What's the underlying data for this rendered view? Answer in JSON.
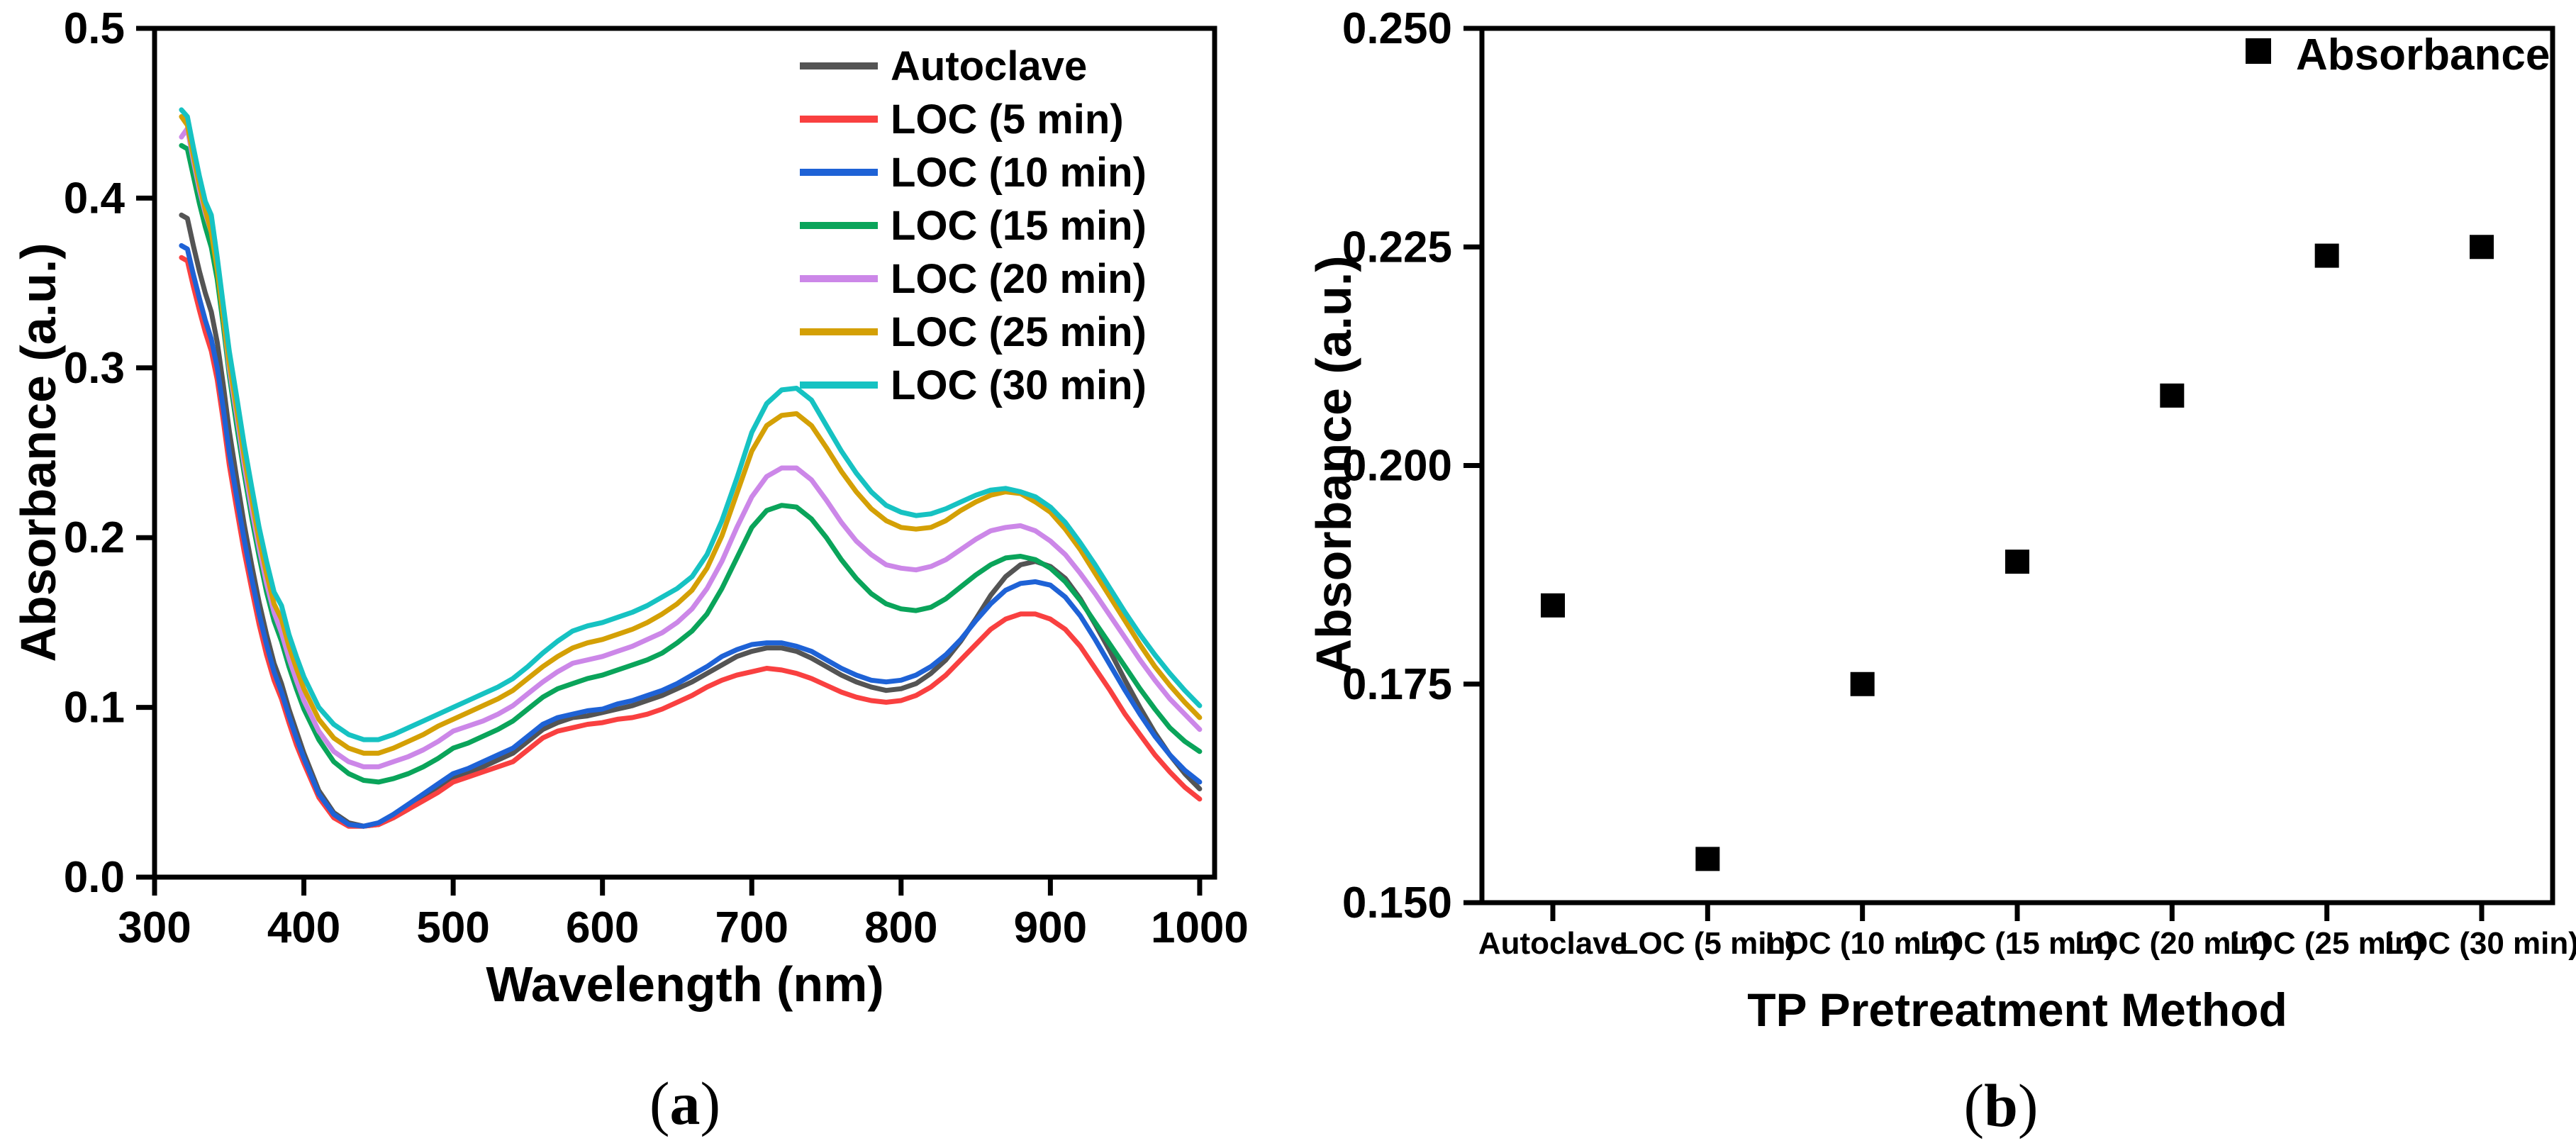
{
  "figure": {
    "background": "#ffffff",
    "axis_color": "#000000",
    "panel_a_caption": "(a)",
    "panel_b_caption": "(b)"
  },
  "chart_data": [
    {
      "panel": "a",
      "type": "line",
      "title": "",
      "xlabel": "Wavelength (nm)",
      "ylabel": "Absorbance (a.u.)",
      "caption": "(a)",
      "xlim": [
        300,
        1010
      ],
      "ylim": [
        0.0,
        0.5
      ],
      "grid": false,
      "legend_position": "top-right-inside",
      "x_ticks": [
        {
          "v": 300,
          "label": "300"
        },
        {
          "v": 400,
          "label": "400"
        },
        {
          "v": 500,
          "label": "500"
        },
        {
          "v": 600,
          "label": "600"
        },
        {
          "v": 700,
          "label": "700"
        },
        {
          "v": 800,
          "label": "800"
        },
        {
          "v": 900,
          "label": "900"
        },
        {
          "v": 1000,
          "label": "1000"
        }
      ],
      "y_ticks": [
        {
          "v": 0.0,
          "label": "0.0"
        },
        {
          "v": 0.1,
          "label": "0.1"
        },
        {
          "v": 0.2,
          "label": "0.2"
        },
        {
          "v": 0.3,
          "label": "0.3"
        },
        {
          "v": 0.4,
          "label": "0.4"
        },
        {
          "v": 0.5,
          "label": "0.5"
        }
      ],
      "x": [
        318,
        322,
        326,
        330,
        334,
        338,
        342,
        346,
        350,
        355,
        360,
        365,
        370,
        375,
        380,
        385,
        390,
        395,
        400,
        410,
        420,
        430,
        440,
        450,
        460,
        470,
        480,
        490,
        500,
        510,
        520,
        530,
        540,
        550,
        560,
        570,
        580,
        590,
        600,
        610,
        620,
        630,
        640,
        650,
        660,
        670,
        680,
        690,
        700,
        710,
        720,
        730,
        740,
        750,
        760,
        770,
        780,
        790,
        800,
        810,
        820,
        830,
        840,
        850,
        860,
        870,
        880,
        890,
        900,
        910,
        920,
        930,
        940,
        950,
        960,
        970,
        980,
        990,
        1000
      ],
      "series": [
        {
          "name": "Autoclave",
          "color": "#545454",
          "y": [
            0.39,
            0.388,
            0.372,
            0.357,
            0.344,
            0.333,
            0.315,
            0.29,
            0.263,
            0.235,
            0.208,
            0.184,
            0.162,
            0.143,
            0.126,
            0.114,
            0.099,
            0.086,
            0.073,
            0.051,
            0.038,
            0.032,
            0.03,
            0.031,
            0.035,
            0.04,
            0.046,
            0.052,
            0.058,
            0.061,
            0.065,
            0.069,
            0.073,
            0.08,
            0.087,
            0.091,
            0.094,
            0.095,
            0.097,
            0.099,
            0.101,
            0.104,
            0.107,
            0.111,
            0.115,
            0.12,
            0.125,
            0.13,
            0.133,
            0.135,
            0.135,
            0.133,
            0.129,
            0.124,
            0.119,
            0.115,
            0.112,
            0.11,
            0.111,
            0.114,
            0.12,
            0.128,
            0.139,
            0.152,
            0.166,
            0.177,
            0.184,
            0.186,
            0.183,
            0.176,
            0.164,
            0.149,
            0.133,
            0.116,
            0.1,
            0.085,
            0.072,
            0.061,
            0.052
          ]
        },
        {
          "name": "LOC (5 min)",
          "color": "#F94040",
          "y": [
            0.365,
            0.363,
            0.348,
            0.334,
            0.321,
            0.31,
            0.293,
            0.269,
            0.243,
            0.217,
            0.192,
            0.17,
            0.149,
            0.131,
            0.116,
            0.105,
            0.091,
            0.078,
            0.067,
            0.047,
            0.035,
            0.03,
            0.03,
            0.031,
            0.035,
            0.04,
            0.045,
            0.05,
            0.056,
            0.059,
            0.062,
            0.065,
            0.068,
            0.075,
            0.082,
            0.086,
            0.088,
            0.09,
            0.091,
            0.093,
            0.094,
            0.096,
            0.099,
            0.103,
            0.107,
            0.112,
            0.116,
            0.119,
            0.121,
            0.123,
            0.122,
            0.12,
            0.117,
            0.113,
            0.109,
            0.106,
            0.104,
            0.103,
            0.104,
            0.107,
            0.112,
            0.119,
            0.128,
            0.137,
            0.146,
            0.152,
            0.155,
            0.155,
            0.152,
            0.146,
            0.136,
            0.123,
            0.11,
            0.096,
            0.084,
            0.072,
            0.062,
            0.053,
            0.046
          ]
        },
        {
          "name": "LOC (10 min)",
          "color": "#1E62D6",
          "y": [
            0.372,
            0.37,
            0.355,
            0.341,
            0.328,
            0.317,
            0.3,
            0.276,
            0.25,
            0.224,
            0.199,
            0.176,
            0.155,
            0.137,
            0.121,
            0.109,
            0.095,
            0.082,
            0.07,
            0.049,
            0.037,
            0.031,
            0.03,
            0.032,
            0.037,
            0.043,
            0.049,
            0.055,
            0.061,
            0.064,
            0.068,
            0.072,
            0.076,
            0.083,
            0.09,
            0.094,
            0.096,
            0.098,
            0.099,
            0.102,
            0.104,
            0.107,
            0.11,
            0.114,
            0.119,
            0.124,
            0.13,
            0.134,
            0.137,
            0.138,
            0.138,
            0.136,
            0.133,
            0.128,
            0.123,
            0.119,
            0.116,
            0.115,
            0.116,
            0.119,
            0.124,
            0.131,
            0.14,
            0.151,
            0.161,
            0.169,
            0.173,
            0.174,
            0.172,
            0.165,
            0.154,
            0.14,
            0.125,
            0.11,
            0.096,
            0.083,
            0.072,
            0.063,
            0.056
          ]
        },
        {
          "name": "LOC (15 min)",
          "color": "#0AA45A",
          "y": [
            0.431,
            0.429,
            0.413,
            0.397,
            0.383,
            0.371,
            0.352,
            0.325,
            0.296,
            0.266,
            0.238,
            0.212,
            0.189,
            0.168,
            0.151,
            0.139,
            0.124,
            0.111,
            0.099,
            0.081,
            0.068,
            0.061,
            0.057,
            0.056,
            0.058,
            0.061,
            0.065,
            0.07,
            0.076,
            0.079,
            0.083,
            0.087,
            0.092,
            0.099,
            0.106,
            0.111,
            0.114,
            0.117,
            0.119,
            0.122,
            0.125,
            0.128,
            0.132,
            0.138,
            0.145,
            0.155,
            0.17,
            0.188,
            0.206,
            0.216,
            0.219,
            0.218,
            0.211,
            0.2,
            0.187,
            0.176,
            0.167,
            0.161,
            0.158,
            0.157,
            0.159,
            0.164,
            0.171,
            0.178,
            0.184,
            0.188,
            0.189,
            0.187,
            0.182,
            0.174,
            0.163,
            0.15,
            0.137,
            0.124,
            0.111,
            0.099,
            0.088,
            0.08,
            0.074
          ]
        },
        {
          "name": "LOC (20 min)",
          "color": "#CC87E8",
          "y": [
            0.436,
            0.441,
            0.422,
            0.405,
            0.391,
            0.38,
            0.362,
            0.33,
            0.3,
            0.272,
            0.243,
            0.217,
            0.194,
            0.173,
            0.156,
            0.144,
            0.129,
            0.116,
            0.104,
            0.086,
            0.074,
            0.068,
            0.065,
            0.065,
            0.068,
            0.071,
            0.075,
            0.08,
            0.086,
            0.089,
            0.092,
            0.096,
            0.101,
            0.108,
            0.115,
            0.121,
            0.126,
            0.128,
            0.13,
            0.133,
            0.136,
            0.14,
            0.144,
            0.15,
            0.158,
            0.17,
            0.186,
            0.206,
            0.224,
            0.236,
            0.241,
            0.241,
            0.234,
            0.222,
            0.209,
            0.198,
            0.19,
            0.184,
            0.182,
            0.181,
            0.183,
            0.187,
            0.193,
            0.199,
            0.204,
            0.206,
            0.207,
            0.204,
            0.198,
            0.19,
            0.179,
            0.167,
            0.154,
            0.141,
            0.128,
            0.116,
            0.105,
            0.096,
            0.087
          ]
        },
        {
          "name": "LOC (25 min)",
          "color": "#D4A005",
          "y": [
            0.448,
            0.443,
            0.425,
            0.408,
            0.393,
            0.38,
            0.358,
            0.33,
            0.303,
            0.276,
            0.248,
            0.223,
            0.199,
            0.179,
            0.161,
            0.152,
            0.136,
            0.123,
            0.111,
            0.093,
            0.082,
            0.076,
            0.073,
            0.073,
            0.076,
            0.08,
            0.084,
            0.089,
            0.093,
            0.097,
            0.101,
            0.105,
            0.11,
            0.117,
            0.124,
            0.13,
            0.135,
            0.138,
            0.14,
            0.143,
            0.146,
            0.15,
            0.155,
            0.161,
            0.169,
            0.182,
            0.201,
            0.226,
            0.251,
            0.266,
            0.272,
            0.273,
            0.266,
            0.253,
            0.239,
            0.227,
            0.217,
            0.21,
            0.206,
            0.205,
            0.206,
            0.21,
            0.216,
            0.221,
            0.225,
            0.227,
            0.226,
            0.221,
            0.215,
            0.205,
            0.193,
            0.179,
            0.165,
            0.151,
            0.137,
            0.124,
            0.113,
            0.103,
            0.094
          ]
        },
        {
          "name": "LOC (30 min)",
          "color": "#16C2C2",
          "y": [
            0.452,
            0.448,
            0.43,
            0.413,
            0.398,
            0.39,
            0.365,
            0.337,
            0.31,
            0.283,
            0.255,
            0.23,
            0.206,
            0.186,
            0.168,
            0.16,
            0.143,
            0.13,
            0.118,
            0.1,
            0.09,
            0.084,
            0.081,
            0.081,
            0.084,
            0.088,
            0.092,
            0.096,
            0.1,
            0.104,
            0.108,
            0.112,
            0.117,
            0.124,
            0.132,
            0.139,
            0.145,
            0.148,
            0.15,
            0.153,
            0.156,
            0.16,
            0.165,
            0.17,
            0.177,
            0.19,
            0.21,
            0.235,
            0.262,
            0.279,
            0.287,
            0.288,
            0.281,
            0.266,
            0.251,
            0.238,
            0.227,
            0.219,
            0.215,
            0.213,
            0.214,
            0.217,
            0.221,
            0.225,
            0.228,
            0.229,
            0.227,
            0.224,
            0.218,
            0.209,
            0.197,
            0.184,
            0.17,
            0.156,
            0.143,
            0.131,
            0.12,
            0.11,
            0.101
          ]
        }
      ]
    },
    {
      "panel": "b",
      "type": "scatter",
      "title": "",
      "xlabel": "TP Pretreatment Method",
      "ylabel": "Absorbance (a.u.)",
      "caption": "(b)",
      "ylim": [
        0.15,
        0.25
      ],
      "grid": false,
      "legend_position": "top-right-inside",
      "y_ticks": [
        {
          "v": 0.15,
          "label": "0.150"
        },
        {
          "v": 0.175,
          "label": "0.175"
        },
        {
          "v": 0.2,
          "label": "0.200"
        },
        {
          "v": 0.225,
          "label": "0.225"
        },
        {
          "v": 0.25,
          "label": "0.250"
        }
      ],
      "categories": [
        "Autoclave",
        "LOC (5 min)",
        "LOC (10 min)",
        "LOC (15 min)",
        "LOC (20 min)",
        "LOC (25 min)",
        "LOC (30 min)"
      ],
      "values": [
        0.184,
        0.155,
        0.175,
        0.189,
        0.208,
        0.224,
        0.225
      ],
      "marker": {
        "shape": "square",
        "color": "#000000",
        "size": 34
      },
      "legend": [
        {
          "label": "Absorbance",
          "marker": "square",
          "color": "#000000"
        }
      ]
    }
  ]
}
